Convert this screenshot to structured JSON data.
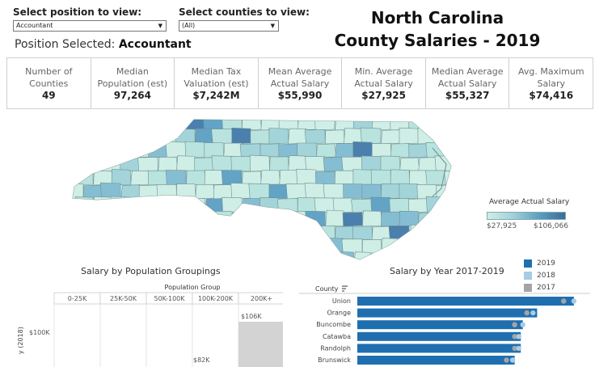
{
  "filters": {
    "position": {
      "label": "Select position to view:",
      "value": "Accountant"
    },
    "counties": {
      "label": "Select counties to view:",
      "value": "(All)"
    }
  },
  "position_selected": {
    "prefix": "Position Selected:",
    "value": "Accountant"
  },
  "title": {
    "line1": "North Carolina",
    "line2": "County Salaries - 2019"
  },
  "kpis": [
    {
      "label": "Number of\nCounties",
      "value": "49"
    },
    {
      "label": "Median\nPopulation (est)",
      "value": "97,264"
    },
    {
      "label": "Median Tax\nValuation (est)",
      "value": "$7,242M"
    },
    {
      "label": "Mean Average\nActual Salary",
      "value": "$55,990"
    },
    {
      "label": "Min. Average\nActual Salary",
      "value": "$27,925"
    },
    {
      "label": "Median Average\nActual Salary",
      "value": "$55,327"
    },
    {
      "label": "Avg. Maximum\nSalary",
      "value": "$74,416"
    }
  ],
  "map_legend": {
    "title": "Average Actual Salary",
    "min": "$27,925",
    "max": "$106,066"
  },
  "population_chart": {
    "title": "Salary by Population Groupings",
    "group_header": "Population Group",
    "groups": [
      "0-25K",
      "25K-50K",
      "50K-100K",
      "100K-200K",
      "200K+"
    ],
    "y_label": "y (2018)",
    "y_tick": "$100K",
    "labels": [
      "$106K",
      "$82K"
    ]
  },
  "year_chart": {
    "title": "Salary by Year 2017-2019",
    "county_header": "County",
    "legend": [
      {
        "label": "2019",
        "color": "#1f6fb0"
      },
      {
        "label": "2018",
        "color": "#a8cbe6"
      },
      {
        "label": "2017",
        "color": "#a4a4a4"
      }
    ],
    "counties": [
      "Union",
      "Orange",
      "Buncombe",
      "Catawba",
      "Randolph",
      "Brunswick"
    ]
  },
  "chart_data": [
    {
      "type": "bar",
      "title": "Salary by Population Groupings",
      "categories": [
        "0-25K",
        "25K-50K",
        "50K-100K",
        "100K-200K",
        "200K+"
      ],
      "values": [
        null,
        null,
        null,
        82,
        106
      ],
      "ylabel": "y (2018)"
    },
    {
      "type": "bar",
      "title": "Salary by Year 2017-2019",
      "categories": [
        "Union",
        "Orange",
        "Buncombe",
        "Catawba",
        "Randolph",
        "Brunswick"
      ],
      "series": [
        {
          "name": "2019",
          "values": [
            106,
            88,
            81,
            80,
            80,
            77
          ]
        },
        {
          "name": "2018",
          "values": [
            106,
            86,
            81,
            79,
            79,
            76
          ]
        },
        {
          "name": "2017",
          "values": [
            101,
            83,
            77,
            77,
            77,
            73
          ]
        }
      ]
    }
  ]
}
